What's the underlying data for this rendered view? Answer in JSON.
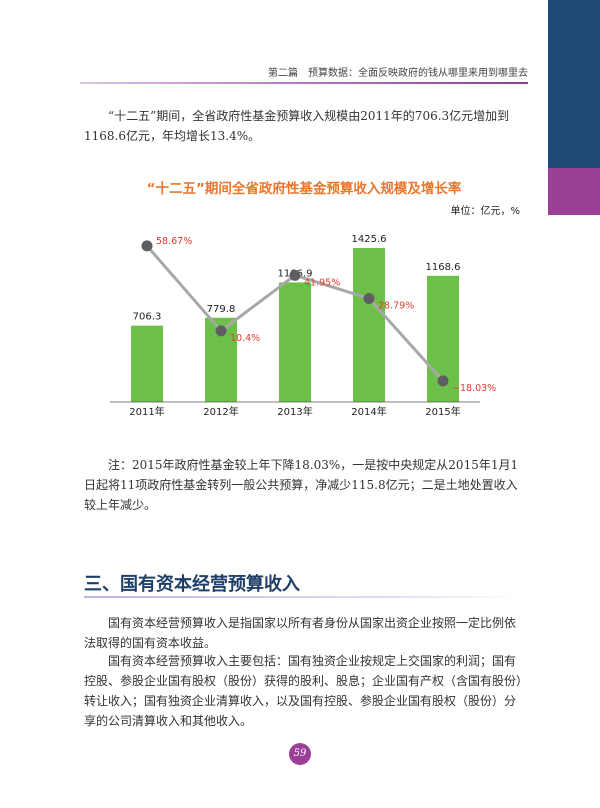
{
  "header": {
    "text": "第二篇　预算数据：全面反映政府的钱从哪里来用到哪里去"
  },
  "intro_text": "“十二五”期间，全省政府性基金预算收入规模由2011年的706.3亿元增加到1168.6亿元，年均增长13.4%。",
  "chart_data": {
    "type": "bar",
    "title": "“十二五”期间全省政府性基金预算收入规模及增长率",
    "unit_label": "单位：亿元，%",
    "categories": [
      "2011年",
      "2012年",
      "2013年",
      "2014年",
      "2015年"
    ],
    "series": [
      {
        "type": "bar",
        "values": [
          706.3,
          779.8,
          1106.9,
          1425.6,
          1168.6
        ],
        "labels": [
          "706.3",
          "779.8",
          "1106.9",
          "1425.6",
          "1168.6"
        ]
      },
      {
        "type": "line",
        "values": [
          58.67,
          10.4,
          41.95,
          28.79,
          -18.03
        ],
        "labels": [
          "58.67%",
          "10.4%",
          "41.95%",
          "28.79%",
          "−18.03%"
        ]
      }
    ],
    "bar_ylim": [
      0,
      1500
    ],
    "line_ylim": [
      -30,
      62
    ],
    "colors": {
      "bar": "#6cc04a",
      "line": "#a8a8a8",
      "marker": "#5e5e62",
      "rate_label": "#e33b2e",
      "value_label": "#222222"
    },
    "grid": false,
    "legend": "none"
  },
  "note_text": "注：2015年政府性基金较上年下降18.03%，一是按中央规定从2015年1月1日起将11项政府性基金转列一般公共预算，净减少115.8亿元；二是土地处置收入较上年减少。",
  "section": {
    "title": "三、国有资本经营预算收入"
  },
  "body_para1": "国有资本经营预算收入是指国家以所有者身份从国家出资企业按照一定比例依法取得的国有资本收益。",
  "body_para2": "国有资本经营预算收入主要包括：国有独资企业按规定上交国家的利润；国有控股、参股企业国有股权（股份）获得的股利、股息；企业国有产权（含国有股份）转让收入；国有独资企业清算收入，以及国有控股、参股企业国有股权（股份）分享的公司清算收入和其他收入。",
  "page_number": "59"
}
